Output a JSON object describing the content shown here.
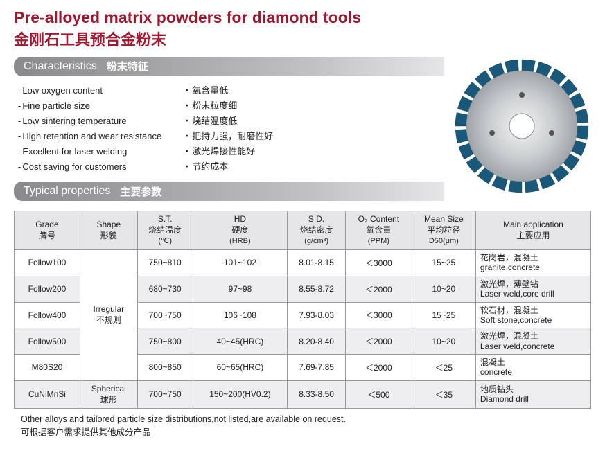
{
  "title": {
    "en": "Pre-alloyed matrix powders for diamond tools",
    "zh": "金刚石工具预合金粉末"
  },
  "sections": {
    "characteristics": {
      "en": "Characteristics",
      "zh": "粉末特征"
    },
    "properties": {
      "en": "Typical properties",
      "zh": "主要参数"
    }
  },
  "characteristics_en": [
    "Low oxygen content",
    "Fine particle size",
    "Low sintering temperature",
    "High retention and wear resistance",
    "Excellent for laser welding",
    "Cost saving for customers"
  ],
  "characteristics_zh": [
    "氧含量低",
    "粉末粒度细",
    "烧结温度低",
    "把持力强，耐磨性好",
    "激光焊接性能好",
    "节约成本"
  ],
  "table": {
    "headers": {
      "grade": {
        "l1": "Grade",
        "l2": "牌号"
      },
      "shape": {
        "l1": "Shape",
        "l2": "形貌"
      },
      "st": {
        "l1": "S.T.",
        "l2": "烧结温度",
        "l3": "(℃)"
      },
      "hd": {
        "l1": "HD",
        "l2": "硬度",
        "l3": "(HRB)"
      },
      "sd": {
        "l1": "S.D.",
        "l2": "烧结密度",
        "l3": "(g/cm³)"
      },
      "o2": {
        "l1": "O₂ Content",
        "l2": "氧含量",
        "l3": "(PPM)"
      },
      "mean": {
        "l1": "Mean Size",
        "l2": "平均粒径",
        "l3": "D50(μm)"
      },
      "app": {
        "l1": "Main application",
        "l2": "主要应用"
      }
    },
    "shape_irregular": {
      "en": "Irregular",
      "zh": "不规则"
    },
    "shape_spherical": {
      "en": "Spherical",
      "zh": "球形"
    },
    "rows": [
      {
        "grade": "Follow100",
        "st": "750~810",
        "hd": "101~102",
        "sd": "8.01-8.15",
        "o2": "＜3000",
        "mean": "15~25",
        "app_zh": "花岗岩，混凝土",
        "app_en": "granite,concrete"
      },
      {
        "grade": "Follow200",
        "st": "680~730",
        "hd": "97~98",
        "sd": "8.55-8.72",
        "o2": "＜2000",
        "mean": "10~20",
        "app_zh": "激光焊，薄壁钻",
        "app_en": "Laser weld,core drill"
      },
      {
        "grade": "Follow400",
        "st": "700~750",
        "hd": "106~108",
        "sd": "7.93-8.03",
        "o2": "＜3000",
        "mean": "15~25",
        "app_zh": "软石材，混凝土",
        "app_en": "Soft stone,concrete"
      },
      {
        "grade": "Follow500",
        "st": "750~800",
        "hd": "40~45(HRC)",
        "sd": "8.20-8.40",
        "o2": "＜2000",
        "mean": "10~20",
        "app_zh": "激光焊，混凝土",
        "app_en": "Laser weld,concrete"
      },
      {
        "grade": "M80S20",
        "st": "800~850",
        "hd": "60~65(HRC)",
        "sd": "7.69-7.85",
        "o2": "＜2000",
        "mean": "＜25",
        "app_zh": "混凝土",
        "app_en": "concrete"
      },
      {
        "grade": "CuNiMnSi",
        "st": "700~750",
        "hd": "150~200(HV0.2)",
        "sd": "8.33-8.50",
        "o2": "＜500",
        "mean": "＜35",
        "app_zh": "地质钻头",
        "app_en": "Diamond drill"
      }
    ]
  },
  "footnote": {
    "en": "Other alloys and tailored particle size distributions,not listed,are available on request.",
    "zh": "可根据客户需求提供其他成分产品"
  },
  "colors": {
    "title": "#a01830",
    "bar_start": "#8a8a8c",
    "bar_end": "#e6e6e8",
    "th_bg": "#e6e6e8",
    "row_alt": "#eeeef0",
    "border": "#999999",
    "blade_outer": "#1a587a",
    "blade_disc": "#c9ccce"
  }
}
